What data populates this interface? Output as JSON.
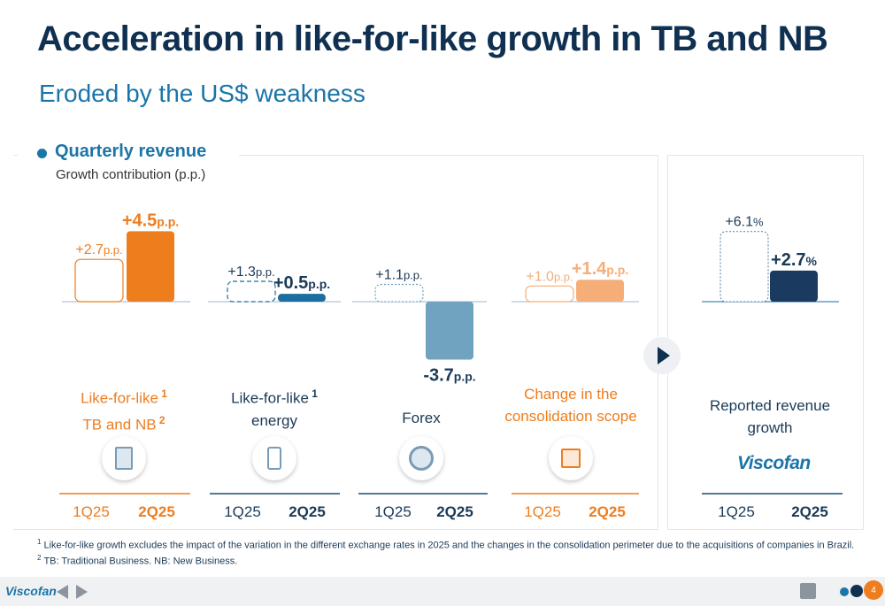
{
  "header": {
    "title": "Acceleration in like-for-like growth in TB and NB",
    "subtitle": "Eroded by the US$ weakness"
  },
  "section": {
    "title": "Quarterly revenue",
    "subtitle": "Growth contribution (p.p.)"
  },
  "chart_data": {
    "type": "bar",
    "title": "Quarterly revenue",
    "subtitle": "Growth contribution (p.p.)",
    "categories": [
      "1Q25",
      "2Q25"
    ],
    "groups": [
      {
        "name": "lfl-tb-nb",
        "label_line1": "Like-for-like",
        "label_sup1": "1",
        "label_line2": "TB and NB",
        "label_sup2": "2",
        "values": [
          2.7,
          4.5
        ],
        "value_labels": [
          "+2.7",
          "+4.5"
        ],
        "unit": "p.p.",
        "color": "#ee7d1e",
        "icon": "factory-icon"
      },
      {
        "name": "lfl-energy",
        "label_line1": "Like-for-like",
        "label_sup1": "1",
        "label_line2": "energy",
        "label_sup2": "",
        "values": [
          1.3,
          0.5
        ],
        "value_labels": [
          "+1.3",
          "+0.5"
        ],
        "unit": "p.p.",
        "color": "#1b6fa0",
        "icon": "energy-icon"
      },
      {
        "name": "forex",
        "label_line1": "Forex",
        "label_sup1": "",
        "label_line2": "",
        "label_sup2": "",
        "values": [
          1.1,
          -3.7
        ],
        "value_labels": [
          "+1.1",
          "-3.7"
        ],
        "unit": "p.p.",
        "color": "#6fa3bf",
        "icon": "coin-icon"
      },
      {
        "name": "consolidation",
        "label_line1": "Change in the",
        "label_sup1": "",
        "label_line2": "consolidation scope",
        "label_sup2": "",
        "values": [
          1.0,
          1.4
        ],
        "value_labels": [
          "+1.0",
          "+1.4"
        ],
        "unit": "p.p.",
        "color": "#f5ae78",
        "icon": "consolidation-icon"
      },
      {
        "name": "reported",
        "label_line1": "Reported revenue",
        "label_sup1": "",
        "label_line2": "growth",
        "label_sup2": "",
        "values": [
          6.1,
          2.7
        ],
        "value_labels": [
          "+6.1",
          "+2.7"
        ],
        "unit": "%",
        "color": "#1b3a5f",
        "icon": "viscofan-logo"
      }
    ]
  },
  "logo_text": "Viscofan",
  "footnotes": [
    {
      "mark": "1",
      "text": "Like-for-like growth excludes the impact of the variation in the different exchange rates in 2025 and the changes in the consolidation perimeter due to the acquisitions of companies in Brazil."
    },
    {
      "mark": "2",
      "text": "TB: Traditional Business. NB: New Business."
    }
  ],
  "footer": {
    "logo": "Viscofan",
    "page_number": "4"
  },
  "colors": {
    "accent_orange": "#ee7d1e",
    "brand_blue": "#1b75a8",
    "navy": "#0f3050"
  }
}
